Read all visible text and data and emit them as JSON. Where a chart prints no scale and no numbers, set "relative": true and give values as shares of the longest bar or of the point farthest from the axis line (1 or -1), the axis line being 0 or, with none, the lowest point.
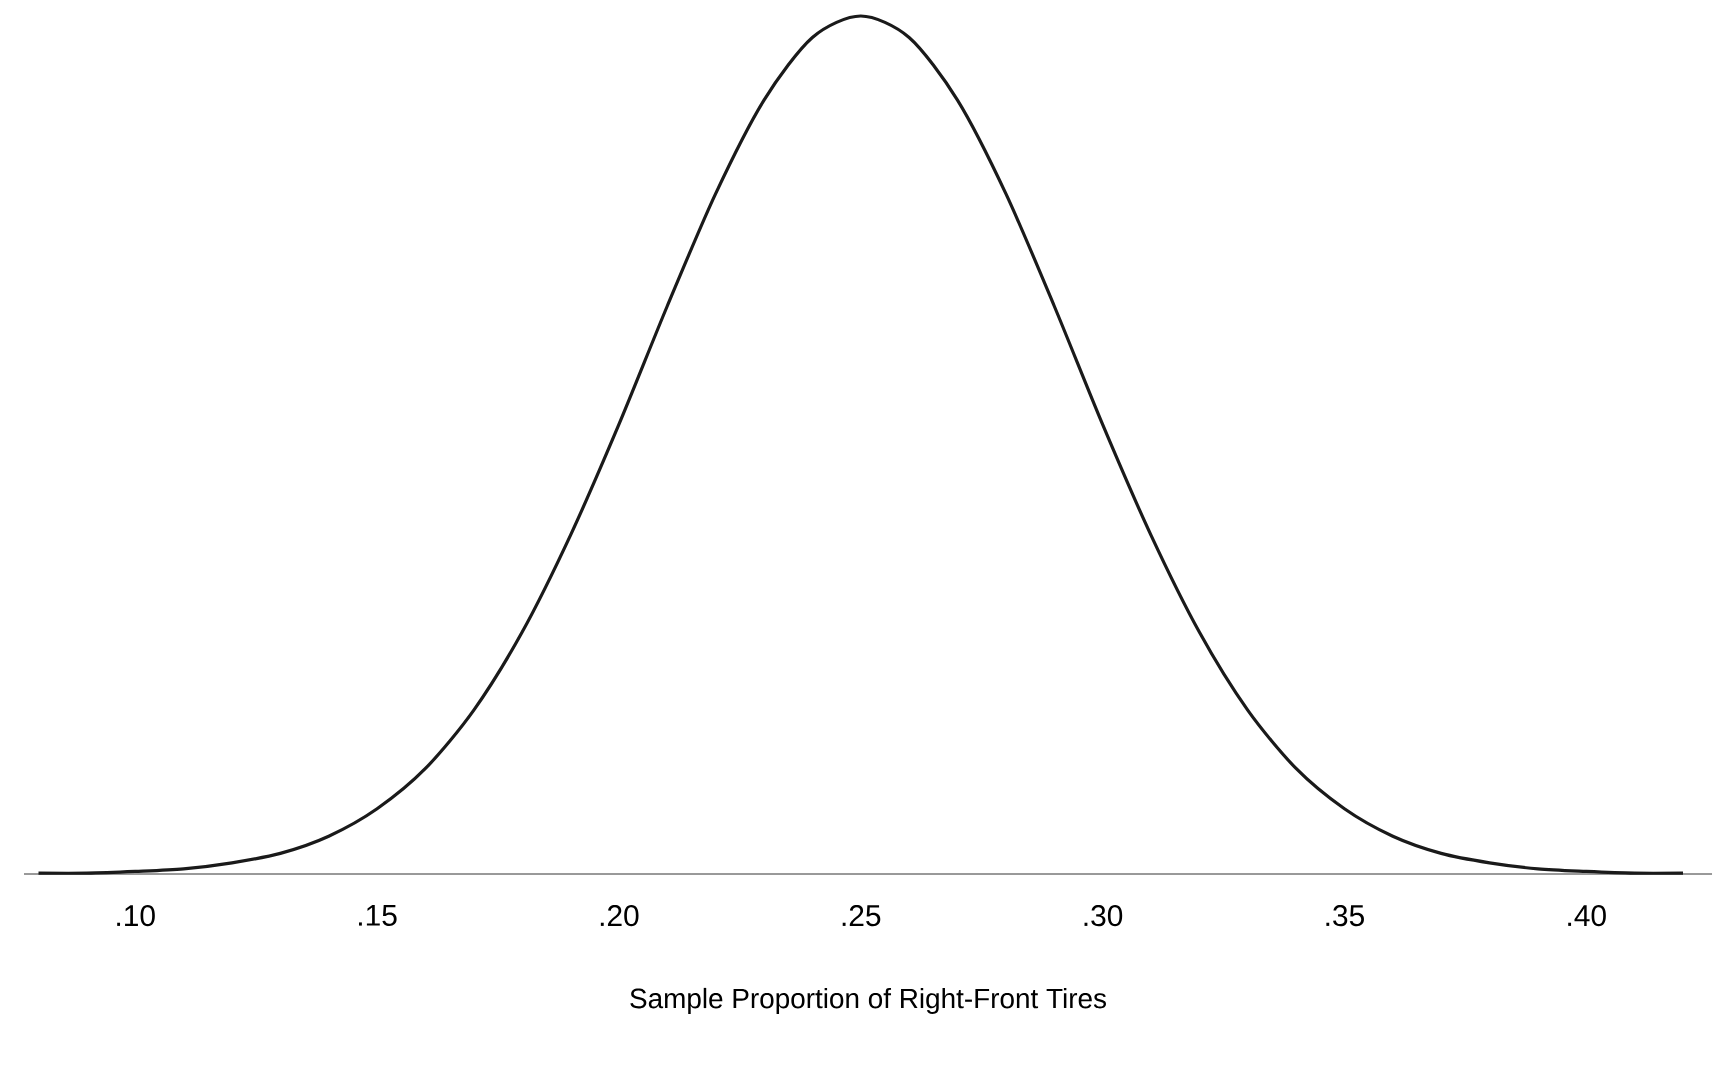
{
  "chart_data": {
    "type": "line",
    "relative": true,
    "xlabel": "Sample Proportion of Right-Front Tires",
    "xlim": [
      0.077,
      0.426
    ],
    "xticks": [
      {
        "value": 0.1,
        "label": ".10"
      },
      {
        "value": 0.15,
        "label": ".15"
      },
      {
        "value": 0.2,
        "label": ".20"
      },
      {
        "value": 0.25,
        "label": ".25"
      },
      {
        "value": 0.3,
        "label": ".30"
      },
      {
        "value": 0.35,
        "label": ".35"
      },
      {
        "value": 0.4,
        "label": ".40"
      }
    ],
    "x": [
      0.08,
      0.09,
      0.1,
      0.11,
      0.12,
      0.13,
      0.14,
      0.15,
      0.16,
      0.17,
      0.18,
      0.19,
      0.2,
      0.21,
      0.22,
      0.23,
      0.24,
      0.25,
      0.26,
      0.27,
      0.28,
      0.29,
      0.3,
      0.31,
      0.32,
      0.33,
      0.34,
      0.35,
      0.36,
      0.37,
      0.38,
      0.39,
      0.4,
      0.41,
      0.42
    ],
    "series": [
      {
        "color": "#1a1a1a",
        "values": [
          0.001,
          0.001,
          0.003,
          0.006,
          0.013,
          0.024,
          0.044,
          0.076,
          0.123,
          0.191,
          0.282,
          0.395,
          0.524,
          0.662,
          0.793,
          0.902,
          0.975,
          1,
          0.975,
          0.902,
          0.793,
          0.662,
          0.524,
          0.395,
          0.282,
          0.191,
          0.123,
          0.076,
          0.044,
          0.024,
          0.013,
          0.006,
          0.003,
          0.001,
          0.001
        ]
      }
    ],
    "marker": "none",
    "line_style": "solid"
  }
}
